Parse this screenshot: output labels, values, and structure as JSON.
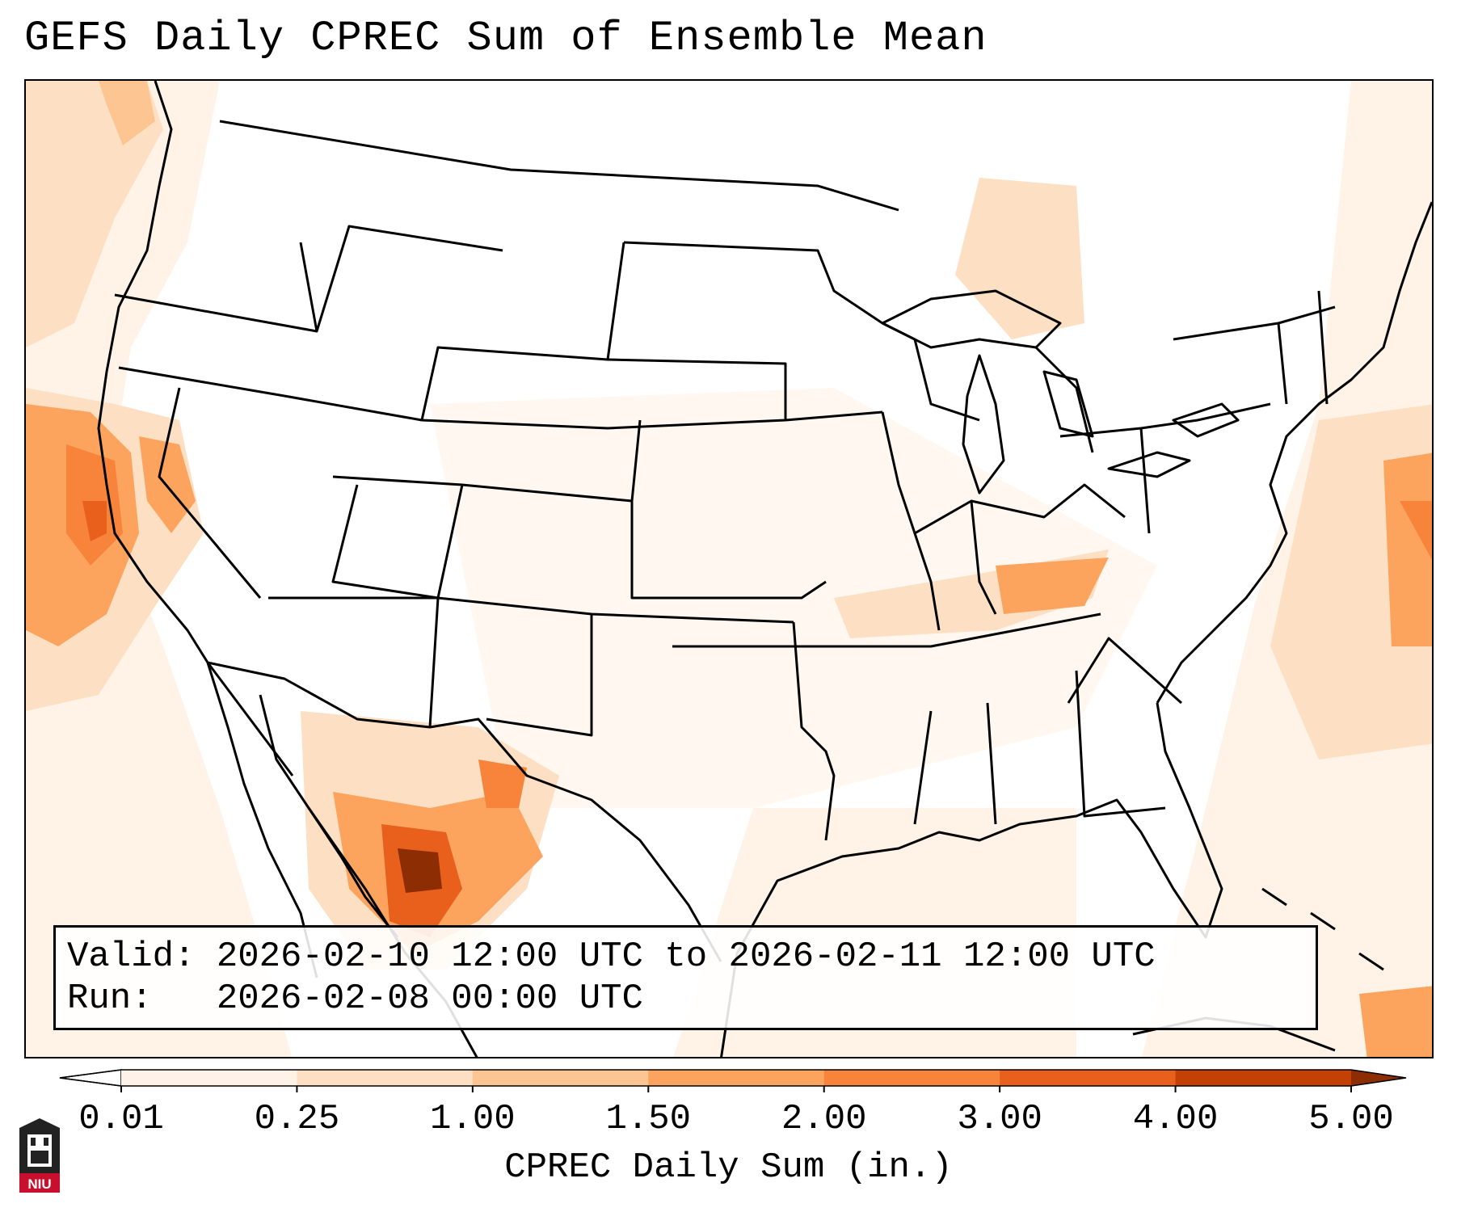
{
  "title": "GEFS Daily CPREC Sum of Ensemble Mean",
  "info": {
    "valid_label": "Valid:",
    "valid_value": "2026-02-10 12:00 UTC to 2026-02-11 12:00 UTC",
    "run_label": "Run:",
    "run_value": "2026-02-08 00:00 UTC"
  },
  "colorbar": {
    "label": "CPREC Daily Sum (in.)",
    "ticks": [
      "0.01",
      "0.25",
      "1.00",
      "1.50",
      "2.00",
      "3.00",
      "4.00",
      "5.00"
    ],
    "colors": [
      "#fff2e6",
      "#fde0c4",
      "#fcc592",
      "#fca45e",
      "#f7843a",
      "#e8601b",
      "#c44106"
    ],
    "extend": "both",
    "under_color": "#ffffff",
    "over_color": "#8c2d04"
  },
  "legend_colors": {
    "land_lines": "#000000",
    "background": "#ffffff"
  },
  "logo": {
    "text": "NIU",
    "color": "#c8102e"
  }
}
